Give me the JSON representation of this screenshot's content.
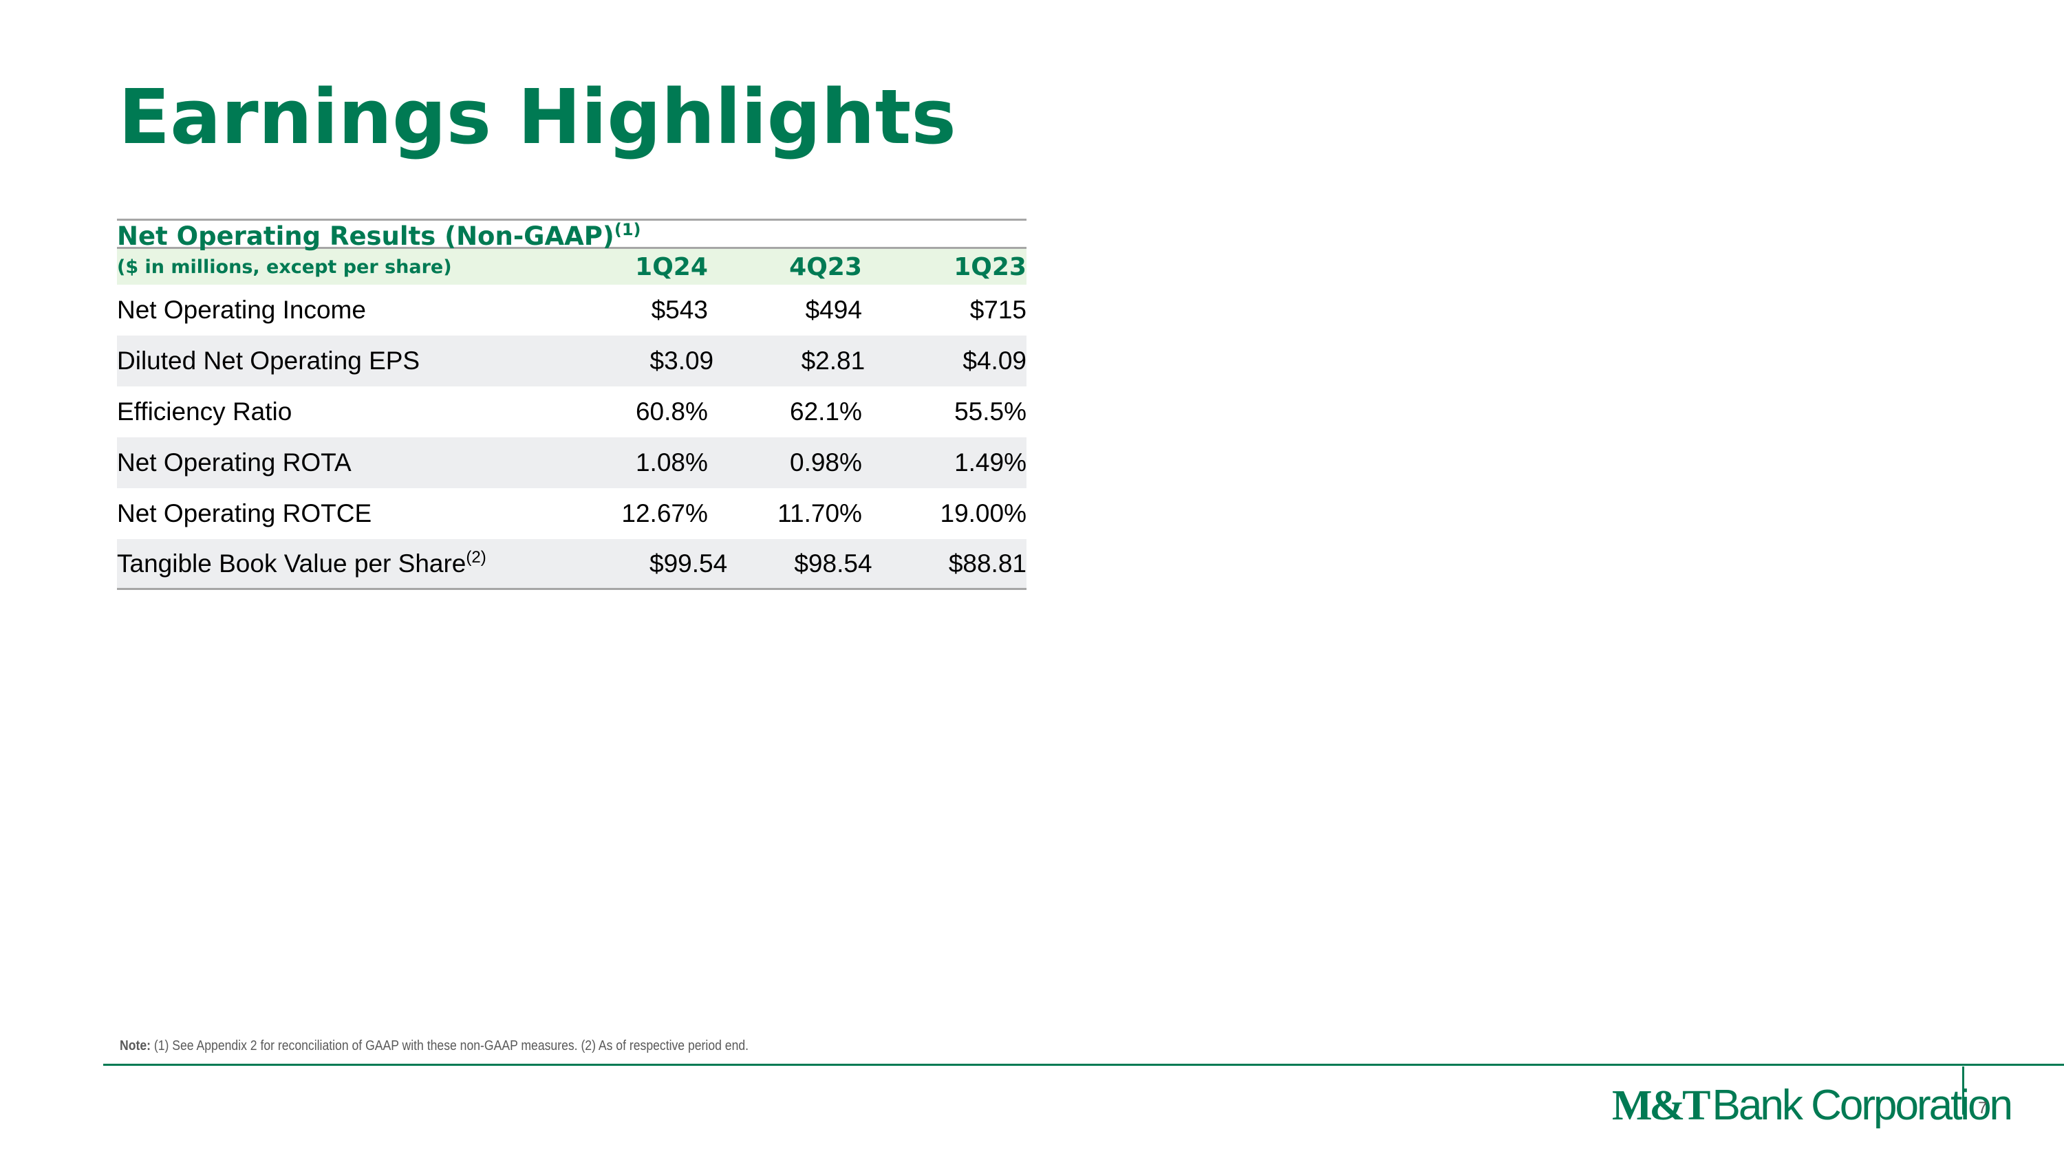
{
  "slide": {
    "title": "Earnings Highlights",
    "page_number": "7"
  },
  "table": {
    "title": "Net Operating Results (Non-GAAP)",
    "title_footnote": "(1)",
    "units_label": "($ in millions, except per share)",
    "columns": [
      "1Q24",
      "4Q23",
      "1Q23"
    ],
    "rows": [
      {
        "label": "Net Operating Income",
        "footnote": "",
        "values": [
          "$543",
          "$494",
          "$715"
        ]
      },
      {
        "label": "Diluted Net Operating EPS",
        "footnote": "",
        "values": [
          "$3.09",
          "$2.81",
          "$4.09"
        ]
      },
      {
        "label": "Efficiency Ratio",
        "footnote": "",
        "values": [
          "60.8%",
          "62.1%",
          "55.5%"
        ]
      },
      {
        "label": "Net Operating ROTA",
        "footnote": "",
        "values": [
          "1.08%",
          "0.98%",
          "1.49%"
        ]
      },
      {
        "label": "Net Operating ROTCE",
        "footnote": "",
        "values": [
          "12.67%",
          "11.70%",
          "19.00%"
        ]
      },
      {
        "label": "Tangible Book Value per Share",
        "footnote": "(2)",
        "values": [
          "$99.54",
          "$98.54",
          "$88.81"
        ]
      }
    ]
  },
  "note": {
    "label": "Note:",
    "text": "(1) See Appendix 2 for reconciliation of GAAP with these non-GAAP measures. (2) As of respective period end."
  },
  "footer": {
    "logo_mark": "M&T",
    "logo_text": "Bank Corporation"
  },
  "colors": {
    "brand_green": "#007a53",
    "header_band": "#e8f5e3",
    "row_shade": "#edeef0",
    "rule_gray": "#a6a6a6"
  }
}
